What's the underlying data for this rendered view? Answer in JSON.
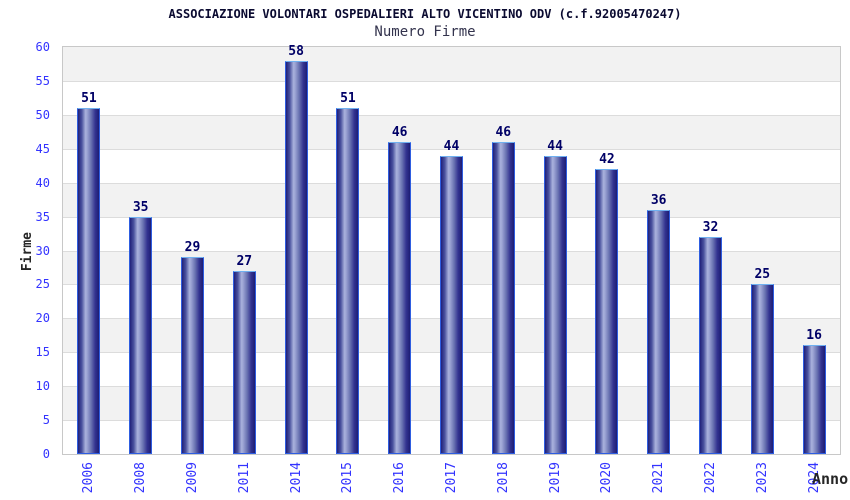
{
  "page": {
    "background": "#ffffff"
  },
  "chart_data": {
    "type": "bar",
    "title": "ASSOCIAZIONE VOLONTARI OSPEDALIERI ALTO VICENTINO ODV (c.f.92005470247)",
    "subtitle": "Numero Firme",
    "xlabel": "Anno",
    "ylabel": "Firme",
    "categories": [
      "2006",
      "2008",
      "2009",
      "2011",
      "2014",
      "2015",
      "2016",
      "2017",
      "2018",
      "2019",
      "2020",
      "2021",
      "2022",
      "2023",
      "2024"
    ],
    "values": [
      51,
      35,
      29,
      27,
      58,
      51,
      46,
      44,
      46,
      44,
      42,
      36,
      32,
      25,
      16
    ],
    "ylim": [
      0,
      60
    ],
    "y_tick_step": 5,
    "y_ticks": [
      0,
      5,
      10,
      15,
      20,
      25,
      30,
      35,
      40,
      45,
      50,
      55,
      60
    ],
    "legend": "none",
    "grid": "horizontal-bands",
    "bar_value_labels_shown": true,
    "colors": {
      "title_text": "#0a0a30",
      "subtitle_text": "#33334d",
      "tick_text": "#3333ff",
      "value_text": "#000066",
      "axis_title_text": "#262626",
      "band_alt": "#f2f2f2",
      "band_main": "#ffffff",
      "grid_line": "#dcdcdc",
      "plot_border": "#c8c8c8",
      "bar_edge_dark": "#20207a",
      "bar_center_light": "#aab2dd",
      "bar_border": "#2e5de0",
      "bar_border_top": "#6fb0f0"
    }
  }
}
